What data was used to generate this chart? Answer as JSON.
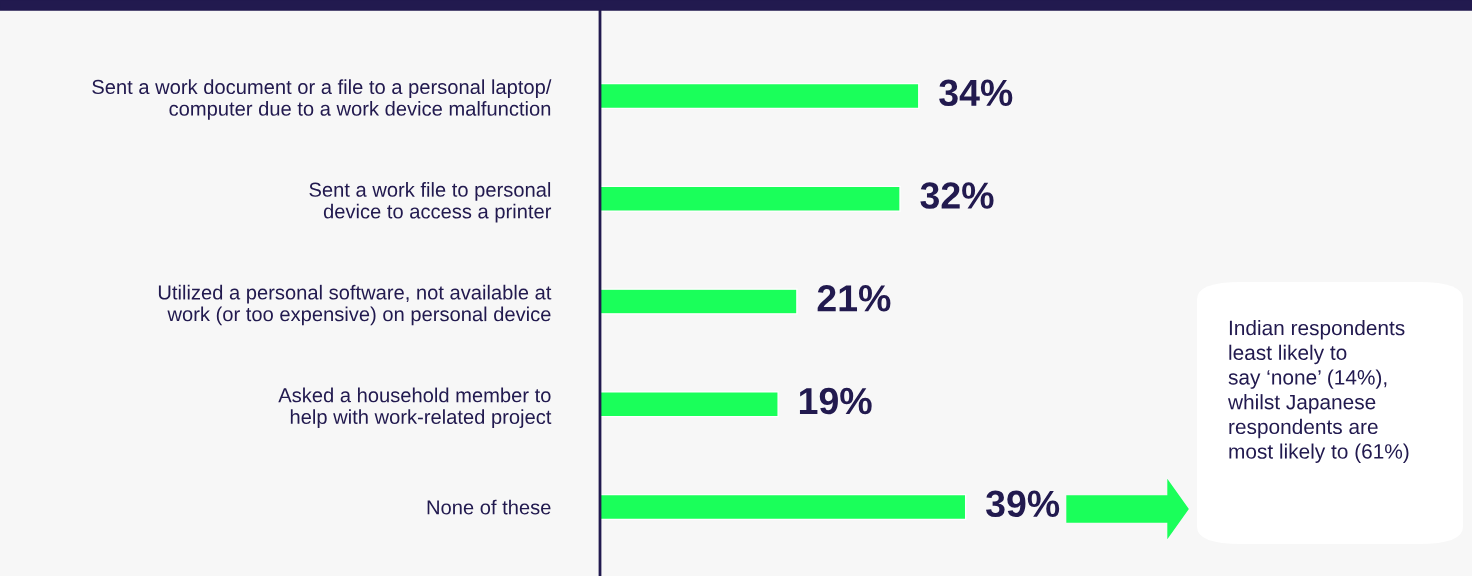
{
  "chart_data": {
    "type": "bar",
    "orientation": "horizontal",
    "categories": [
      "Sent a work document or a file to a personal laptop/\ncomputer due to a work device malfunction",
      "Sent a work file to personal\ndevice to access a printer",
      "Utilized a personal software, not available at\nwork (or too expensive) on personal device",
      "Asked a household member to\nhelp with work-related project",
      "None of these"
    ],
    "values": [
      34,
      32,
      21,
      19,
      39
    ],
    "value_labels": [
      "34%",
      "32%",
      "21%",
      "19%",
      "39%"
    ],
    "color": "#1aff5a",
    "xlim": [
      0,
      93
    ],
    "tick_labels": "y",
    "grid": false,
    "annotations": [
      "Indian respondents\nleast likely to\nsay ‘none’ (14%),\nwhilst Japanese\nrespondents are\nmost likely to (61%)"
    ]
  }
}
